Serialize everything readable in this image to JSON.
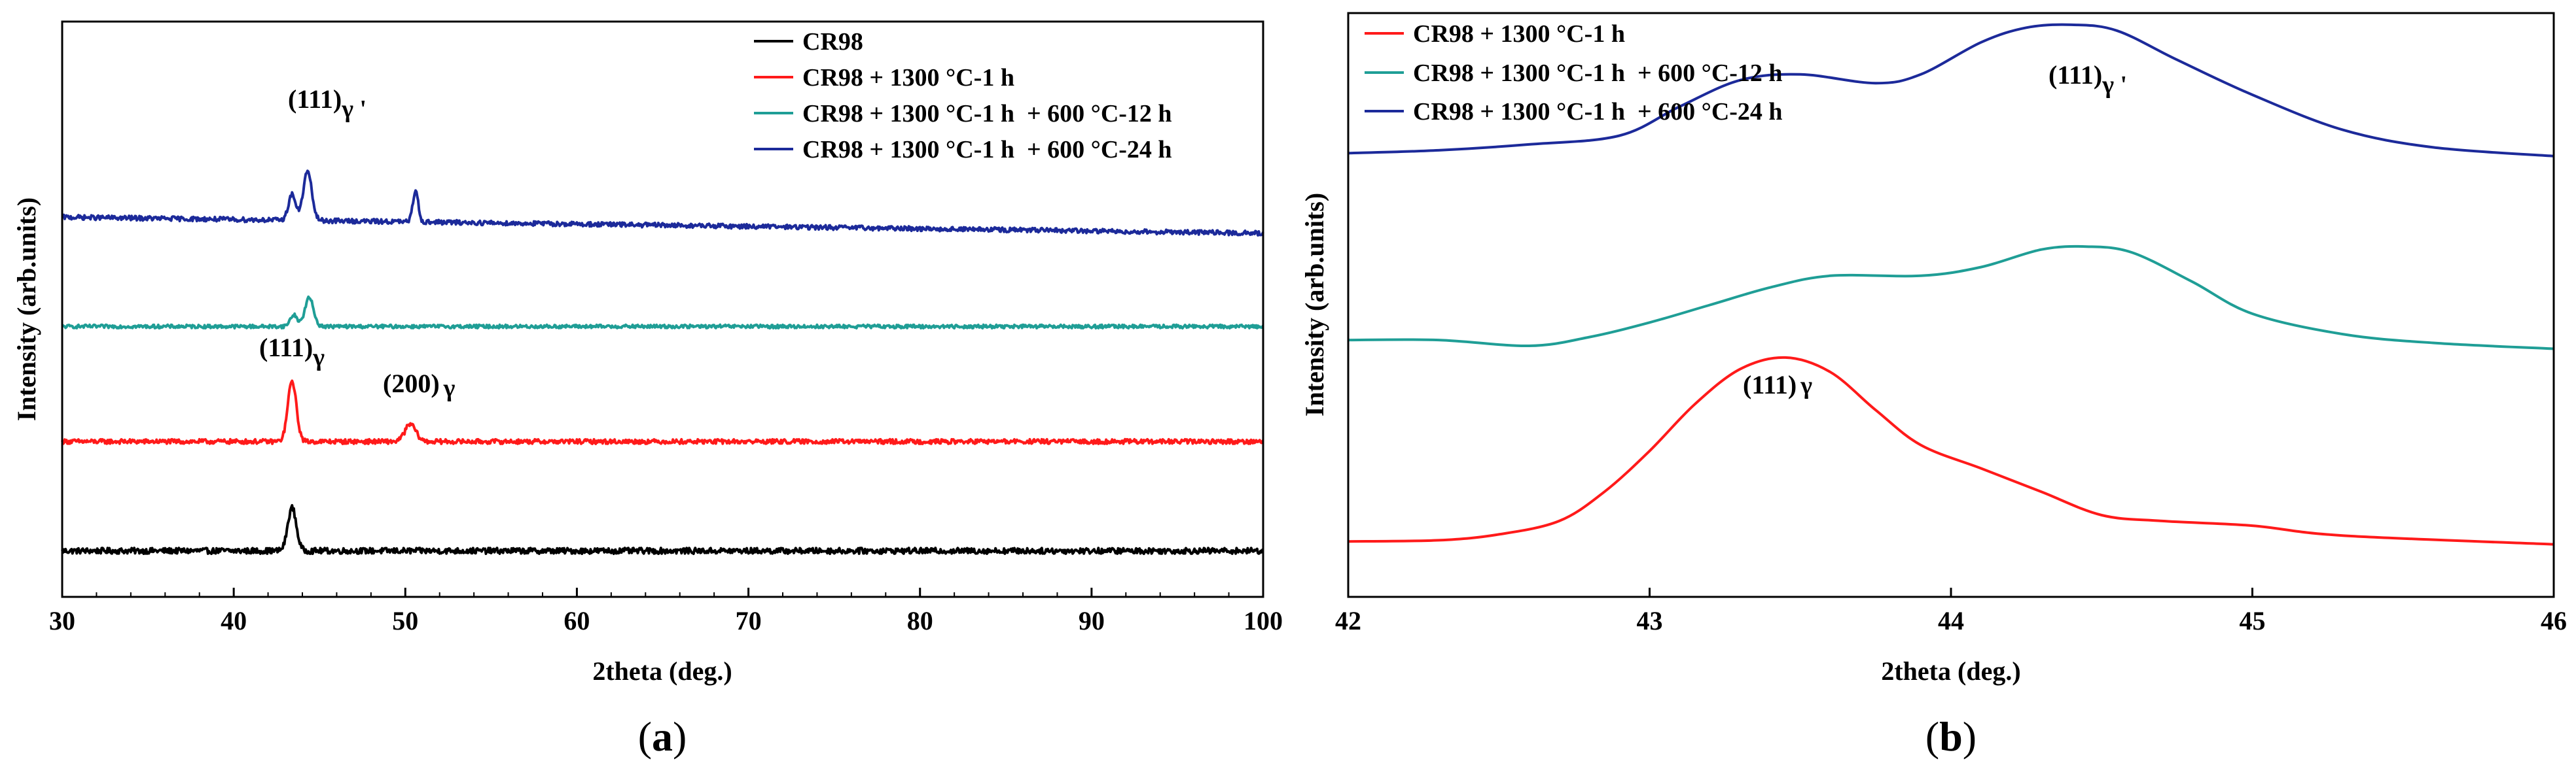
{
  "colors": {
    "black": "#000000",
    "red": "#ff1a1a",
    "teal": "#1f9e96",
    "navy": "#1c2a9a"
  },
  "chart_data": [
    {
      "type": "line",
      "panel_label": "a",
      "xlabel": "2theta (deg.)",
      "ylabel": "Intensity (arb.units)",
      "xlim": [
        30,
        100
      ],
      "ylim": [
        0,
        10
      ],
      "y_ticks_shown": false,
      "x_ticks": [
        30,
        40,
        50,
        60,
        70,
        80,
        90,
        100
      ],
      "x_tick_labels": [
        "30",
        "40",
        "50",
        "60",
        "70",
        "80",
        "90",
        "100"
      ],
      "legend": [
        {
          "label": "CR98",
          "color": "#000000"
        },
        {
          "label": "CR98 + 1300 °C-1 h",
          "color": "#ff1a1a"
        },
        {
          "label": "CR98 + 1300 °C-1 h  + 600 °C-12 h",
          "color": "#1f9e96"
        },
        {
          "label": "CR98 + 1300 °C-1 h  + 600 °C-24 h",
          "color": "#1c2a9a"
        }
      ],
      "annotations": [
        {
          "main": "(111)",
          "sub": "γ '",
          "x": 44.3,
          "y": 9.0
        },
        {
          "main": "(111)",
          "sub": "γ",
          "x": 43.4,
          "y": 4.5
        },
        {
          "main": "(200)",
          "sub": "γ",
          "x": 50.2,
          "y": 3.8
        }
      ],
      "series": [
        {
          "name": "CR98",
          "color": "#000000",
          "baseline": 0.8,
          "noise": 0.05,
          "peaks": [
            {
              "x": 43.4,
              "h": 0.75,
              "w": 0.35
            }
          ]
        },
        {
          "name": "CR98 + 1300 °C-1 h",
          "color": "#ff1a1a",
          "baseline": 2.7,
          "noise": 0.04,
          "peaks": [
            {
              "x": 43.4,
              "h": 1.05,
              "w": 0.35
            },
            {
              "x": 50.3,
              "h": 0.3,
              "w": 0.45
            }
          ]
        },
        {
          "name": "CR98 + 1300 °C-1 h  + 600 °C-12 h",
          "color": "#1f9e96",
          "baseline": 4.7,
          "noise": 0.03,
          "peaks": [
            {
              "x": 43.5,
              "h": 0.2,
              "w": 0.3
            },
            {
              "x": 44.4,
              "h": 0.5,
              "w": 0.35
            }
          ]
        },
        {
          "name": "CR98 + 1300 °C-1 h  + 600 °C-24 h",
          "color": "#1c2a9a",
          "baseline": 6.6,
          "noise": 0.04,
          "slope": -0.004,
          "peaks": [
            {
              "x": 43.4,
              "h": 0.45,
              "w": 0.3
            },
            {
              "x": 44.3,
              "h": 0.85,
              "w": 0.35
            },
            {
              "x": 50.6,
              "h": 0.55,
              "w": 0.22
            }
          ]
        }
      ]
    },
    {
      "type": "line",
      "panel_label": "b",
      "xlabel": "2theta (deg.)",
      "ylabel": "Intensity (arb.units)",
      "xlim": [
        42,
        46
      ],
      "ylim": [
        0,
        10
      ],
      "y_ticks_shown": false,
      "x_ticks": [
        42,
        43,
        44,
        45,
        46
      ],
      "x_tick_labels": [
        "42",
        "43",
        "44",
        "45",
        "46"
      ],
      "legend": [
        {
          "label": "CR98 + 1300 °C-1 h",
          "color": "#ff1a1a"
        },
        {
          "label": "CR98 + 1300 °C-1 h  + 600 °C-12 h",
          "color": "#1f9e96"
        },
        {
          "label": "CR98 + 1300 °C-1 h  + 600 °C-24 h",
          "color": "#1c2a9a"
        }
      ],
      "annotations": [
        {
          "main": "(111)",
          "sub": "γ '",
          "x": 44.35,
          "y": 9.15
        },
        {
          "main": "(111)",
          "sub": "γ",
          "x": 43.45,
          "y": 5.3
        }
      ],
      "series": [
        {
          "name": "CR98 + 1300 °C-1 h",
          "color": "#ff1a1a",
          "points": [
            [
              42.0,
              0.95
            ],
            [
              42.3,
              0.97
            ],
            [
              42.5,
              1.07
            ],
            [
              42.7,
              1.3
            ],
            [
              42.85,
              1.8
            ],
            [
              43.0,
              2.5
            ],
            [
              43.15,
              3.3
            ],
            [
              43.3,
              3.9
            ],
            [
              43.45,
              4.1
            ],
            [
              43.6,
              3.85
            ],
            [
              43.75,
              3.2
            ],
            [
              43.9,
              2.6
            ],
            [
              44.1,
              2.2
            ],
            [
              44.3,
              1.8
            ],
            [
              44.5,
              1.4
            ],
            [
              44.7,
              1.3
            ],
            [
              45.0,
              1.22
            ],
            [
              45.3,
              1.05
            ],
            [
              46.0,
              0.9
            ]
          ]
        },
        {
          "name": "CR98 + 1300 °C-1 h  + 600 °C-12 h",
          "color": "#1f9e96",
          "points": [
            [
              42.0,
              4.4
            ],
            [
              42.3,
              4.4
            ],
            [
              42.6,
              4.3
            ],
            [
              42.8,
              4.45
            ],
            [
              43.0,
              4.7
            ],
            [
              43.2,
              5.0
            ],
            [
              43.4,
              5.3
            ],
            [
              43.6,
              5.5
            ],
            [
              43.9,
              5.5
            ],
            [
              44.1,
              5.65
            ],
            [
              44.3,
              5.95
            ],
            [
              44.45,
              6.0
            ],
            [
              44.6,
              5.9
            ],
            [
              44.8,
              5.4
            ],
            [
              45.0,
              4.85
            ],
            [
              45.3,
              4.5
            ],
            [
              45.6,
              4.35
            ],
            [
              46.0,
              4.25
            ]
          ]
        },
        {
          "name": "CR98 + 1300 °C-1 h  + 600 °C-24 h",
          "color": "#1c2a9a",
          "points": [
            [
              42.0,
              7.6
            ],
            [
              42.3,
              7.65
            ],
            [
              42.6,
              7.75
            ],
            [
              42.9,
              7.9
            ],
            [
              43.1,
              8.4
            ],
            [
              43.3,
              8.85
            ],
            [
              43.5,
              8.95
            ],
            [
              43.75,
              8.8
            ],
            [
              43.9,
              8.95
            ],
            [
              44.1,
              9.5
            ],
            [
              44.25,
              9.75
            ],
            [
              44.4,
              9.8
            ],
            [
              44.55,
              9.7
            ],
            [
              44.75,
              9.2
            ],
            [
              45.0,
              8.6
            ],
            [
              45.3,
              8.0
            ],
            [
              45.6,
              7.7
            ],
            [
              46.0,
              7.55
            ]
          ]
        }
      ]
    }
  ]
}
